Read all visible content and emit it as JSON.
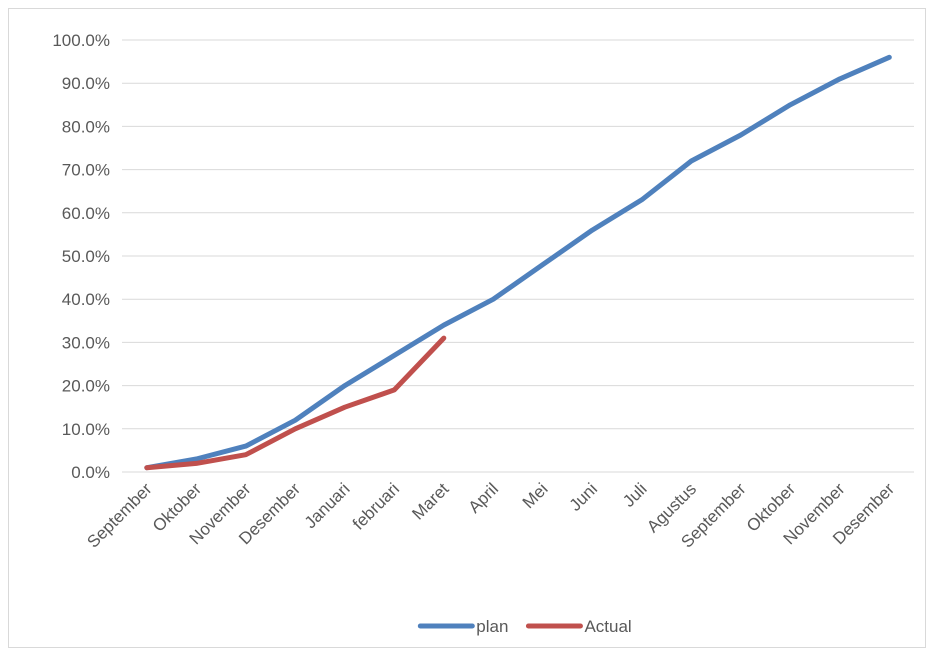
{
  "chart_data": {
    "type": "line",
    "categories": [
      "September",
      "Oktober",
      "November",
      "Desember",
      "Januari",
      "februari",
      "Maret",
      "April",
      "Mei",
      "Juni",
      "Juli",
      "Agustus",
      "September",
      "Oktober",
      "November",
      "Desember"
    ],
    "series": [
      {
        "name": "plan",
        "color": "#4f81bd",
        "values": [
          0.01,
          0.03,
          0.06,
          0.12,
          0.2,
          0.27,
          0.34,
          0.4,
          0.48,
          0.56,
          0.63,
          0.72,
          0.78,
          0.85,
          0.91,
          0.96
        ]
      },
      {
        "name": "Actual",
        "color": "#c0504d",
        "values": [
          0.01,
          0.02,
          0.04,
          0.1,
          0.15,
          0.19,
          0.31,
          null,
          null,
          null,
          null,
          null,
          null,
          null,
          null,
          null
        ]
      }
    ],
    "ylim": [
      0,
      1.0
    ],
    "yticks": [
      0,
      0.1,
      0.2,
      0.3,
      0.4,
      0.5,
      0.6,
      0.7,
      0.8,
      0.9,
      1.0
    ],
    "ytick_labels": [
      "0.0%",
      "10.0%",
      "20.0%",
      "30.0%",
      "40.0%",
      "50.0%",
      "60.0%",
      "70.0%",
      "80.0%",
      "90.0%",
      "100.0%"
    ],
    "title": "",
    "xlabel": "",
    "ylabel": "",
    "grid": true,
    "legend_position": "bottom"
  }
}
